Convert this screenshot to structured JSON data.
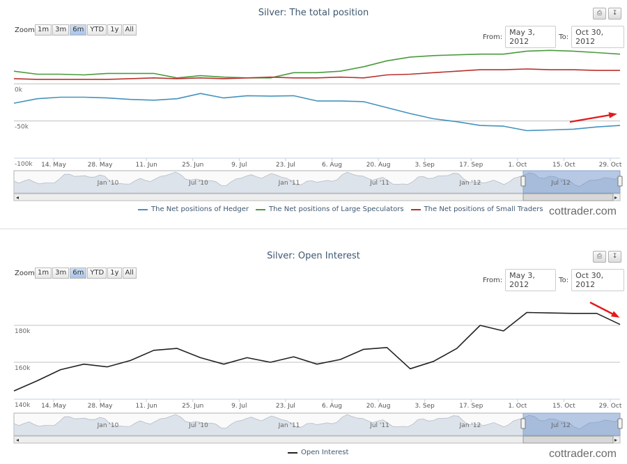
{
  "chart1": {
    "title": "Silver: The total position",
    "zoom_label": "Zoom",
    "zoom_buttons": [
      "1m",
      "3m",
      "6m",
      "YTD",
      "1y",
      "All"
    ],
    "zoom_selected": "6m",
    "from_label": "From:",
    "from_value": "May 3, 2012",
    "to_label": "To:",
    "to_value": "Oct 30, 2012",
    "brand": "cottrader.com"
  },
  "chart2": {
    "title": "Silver: Open Interest",
    "zoom_label": "Zoom",
    "zoom_buttons": [
      "1m",
      "3m",
      "6m",
      "YTD",
      "1y",
      "All"
    ],
    "zoom_selected": "6m",
    "from_label": "From:",
    "from_value": "May 3, 2012",
    "to_label": "To:",
    "to_value": "Oct 30, 2012",
    "brand": "cottrader.com"
  },
  "icons": {
    "print": "print-icon",
    "export": "download-icon"
  },
  "chart_data": [
    {
      "type": "line",
      "title": "Silver: The total position",
      "x_ticks": [
        "14. May",
        "28. May",
        "11. Jun",
        "25. Jun",
        "9. Jul",
        "23. Jul",
        "6. Aug",
        "20. Aug",
        "3. Sep",
        "17. Sep",
        "1. Oct",
        "15. Oct",
        "29. Oct"
      ],
      "y_ticks": [
        "0k",
        "-50k",
        "-100k"
      ],
      "ylim": [
        -100000,
        50000
      ],
      "navigator_labels": [
        "Jan '10",
        "Jul '10",
        "Jan '11",
        "Jul '11",
        "Jan '12",
        "Jul '12"
      ],
      "x": [
        "2012-05-01",
        "2012-05-08",
        "2012-05-15",
        "2012-05-22",
        "2012-05-29",
        "2012-06-05",
        "2012-06-12",
        "2012-06-19",
        "2012-06-26",
        "2012-07-03",
        "2012-07-10",
        "2012-07-17",
        "2012-07-24",
        "2012-07-31",
        "2012-08-07",
        "2012-08-14",
        "2012-08-21",
        "2012-08-28",
        "2012-09-04",
        "2012-09-11",
        "2012-09-18",
        "2012-09-25",
        "2012-10-02",
        "2012-10-09",
        "2012-10-16",
        "2012-10-23",
        "2012-10-30"
      ],
      "series": [
        {
          "name": "The Net positions of Hedger",
          "color": "#4292bd",
          "values": [
            -26000,
            -20000,
            -18000,
            -18000,
            -19000,
            -21000,
            -22000,
            -20000,
            -13000,
            -19000,
            -16000,
            -16500,
            -16000,
            -23000,
            -23000,
            -24000,
            -32000,
            -40000,
            -47000,
            -51000,
            -56000,
            -57000,
            -63000,
            -62000,
            -61000,
            -58000,
            -56000
          ]
        },
        {
          "name": "The Net positions of Large Speculators",
          "color": "#4a9a3d",
          "values": [
            17000,
            13000,
            13000,
            12000,
            14000,
            14000,
            14000,
            8000,
            11000,
            9000,
            8000,
            8000,
            15000,
            15000,
            17000,
            23000,
            31000,
            36000,
            38000,
            39000,
            40000,
            40000,
            44000,
            45000,
            44000,
            42000,
            40000
          ]
        },
        {
          "name": "The Net positions of Small Traders",
          "color": "#b8302b",
          "values": [
            7000,
            6000,
            6000,
            6000,
            6000,
            7000,
            8000,
            7000,
            8000,
            7000,
            8000,
            9000,
            8000,
            8000,
            9000,
            8000,
            12000,
            13000,
            15000,
            17000,
            19000,
            19000,
            20000,
            19000,
            19000,
            18000,
            18000
          ]
        }
      ],
      "legend": [
        "The Net positions of Hedger",
        "The Net positions of Large Speculators",
        "The Net positions of Small Traders"
      ],
      "legend_position": "bottom",
      "grid": true
    },
    {
      "type": "line",
      "title": "Silver: Open Interest",
      "x_ticks": [
        "14. May",
        "28. May",
        "11. Jun",
        "25. Jun",
        "9. Jul",
        "23. Jul",
        "6. Aug",
        "20. Aug",
        "3. Sep",
        "17. Sep",
        "1. Oct",
        "15. Oct",
        "29. Oct"
      ],
      "y_ticks": [
        "180k",
        "160k",
        "140k"
      ],
      "ylim": [
        140000,
        200000
      ],
      "navigator_labels": [
        "Jan '10",
        "Jul '10",
        "Jan '11",
        "Jul '11",
        "Jan '12",
        "Jul '12"
      ],
      "x": [
        "2012-05-01",
        "2012-05-08",
        "2012-05-15",
        "2012-05-22",
        "2012-05-29",
        "2012-06-05",
        "2012-06-12",
        "2012-06-19",
        "2012-06-26",
        "2012-07-03",
        "2012-07-10",
        "2012-07-17",
        "2012-07-24",
        "2012-07-31",
        "2012-08-07",
        "2012-08-14",
        "2012-08-21",
        "2012-08-28",
        "2012-09-04",
        "2012-09-11",
        "2012-09-18",
        "2012-09-25",
        "2012-10-02",
        "2012-10-09",
        "2012-10-16",
        "2012-10-23",
        "2012-10-30"
      ],
      "series": [
        {
          "name": "Open Interest",
          "color": "#222222",
          "values": [
            144500,
            150000,
            156000,
            159000,
            157500,
            161000,
            166500,
            167500,
            162500,
            159000,
            162500,
            160000,
            163000,
            159000,
            161500,
            167000,
            168000,
            156500,
            160500,
            167500,
            180000,
            177000,
            187000,
            186700,
            186500,
            186500,
            180500
          ]
        }
      ],
      "legend": [
        "Open Interest"
      ],
      "legend_position": "bottom",
      "grid": true
    }
  ]
}
